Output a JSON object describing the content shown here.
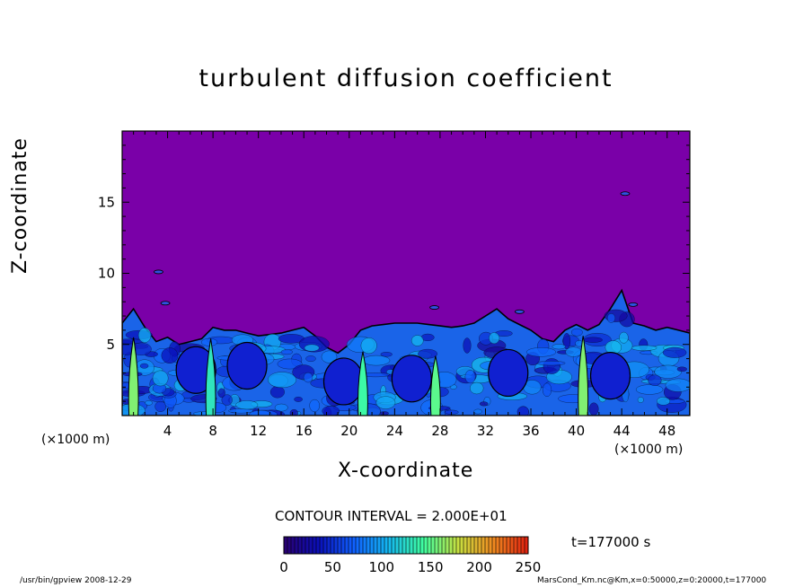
{
  "chart_data": {
    "type": "heatmap",
    "title": "turbulent diffusion coefficient",
    "xlabel": "X-coordinate",
    "ylabel": "Z-coordinate",
    "x_unit": "(×1000 m)",
    "y_unit": "(×1000 m)",
    "xlim": [
      0,
      50
    ],
    "ylim": [
      0,
      20
    ],
    "x_ticks": [
      4,
      8,
      12,
      16,
      20,
      24,
      28,
      32,
      36,
      40,
      44,
      48
    ],
    "y_ticks": [
      5,
      10,
      15
    ],
    "contour_interval_text": "CONTOUR INTERVAL = 2.000E+01",
    "time_text": "t=177000 s",
    "colorbar": {
      "min": 0,
      "max": 250,
      "ticks": [
        0,
        50,
        100,
        150,
        200,
        250
      ],
      "colors": [
        "#2a0070",
        "#0a0fb8",
        "#1060ff",
        "#14b8f0",
        "#40ffa0",
        "#c8e040",
        "#f08a20",
        "#e02010"
      ]
    },
    "boundary_layer_top": [
      [
        0,
        6.5
      ],
      [
        1,
        7.5
      ],
      [
        2,
        6.2
      ],
      [
        3,
        5.2
      ],
      [
        4,
        5.5
      ],
      [
        5,
        5.0
      ],
      [
        6,
        5.2
      ],
      [
        7,
        5.4
      ],
      [
        8,
        6.2
      ],
      [
        9,
        6.0
      ],
      [
        10,
        6.0
      ],
      [
        11,
        5.8
      ],
      [
        12,
        5.6
      ],
      [
        13,
        5.7
      ],
      [
        14,
        5.8
      ],
      [
        15,
        6.0
      ],
      [
        16,
        6.2
      ],
      [
        17,
        5.6
      ],
      [
        18,
        4.8
      ],
      [
        19,
        4.4
      ],
      [
        20,
        5.0
      ],
      [
        21,
        6.0
      ],
      [
        22,
        6.3
      ],
      [
        23,
        6.4
      ],
      [
        24,
        6.5
      ],
      [
        25,
        6.5
      ],
      [
        26,
        6.5
      ],
      [
        27,
        6.4
      ],
      [
        28,
        6.3
      ],
      [
        29,
        6.2
      ],
      [
        30,
        6.3
      ],
      [
        31,
        6.5
      ],
      [
        32,
        7.0
      ],
      [
        33,
        7.5
      ],
      [
        34,
        6.8
      ],
      [
        35,
        6.4
      ],
      [
        36,
        6.0
      ],
      [
        37,
        5.4
      ],
      [
        38,
        5.2
      ],
      [
        39,
        6.0
      ],
      [
        40,
        6.4
      ],
      [
        41,
        6.0
      ],
      [
        42,
        6.4
      ],
      [
        43,
        7.5
      ],
      [
        44,
        8.8
      ],
      [
        45,
        6.5
      ],
      [
        46,
        6.3
      ],
      [
        47,
        6.0
      ],
      [
        48,
        6.2
      ],
      [
        49,
        6.0
      ],
      [
        50,
        5.8
      ]
    ],
    "high_value_streaks": [
      {
        "x": 1.0,
        "z_top": 5.5,
        "value": 160
      },
      {
        "x": 7.8,
        "z_top": 5.4,
        "value": 130
      },
      {
        "x": 21.2,
        "z_top": 4.5,
        "value": 140
      },
      {
        "x": 27.6,
        "z_top": 4.2,
        "value": 150
      },
      {
        "x": 40.6,
        "z_top": 5.6,
        "value": 160
      }
    ]
  },
  "footer": {
    "left": "/usr/bin/gpview   2008-12-29",
    "right": "MarsCond_Km.nc@Km,x=0:50000,z=0:20000,t=177000"
  }
}
